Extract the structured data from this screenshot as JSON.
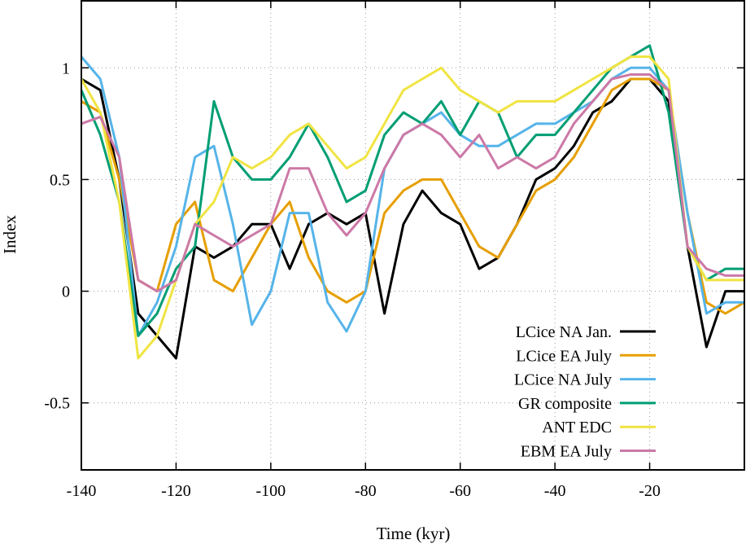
{
  "chart_data": {
    "type": "line",
    "title": "",
    "xlabel": "Time (kyr)",
    "ylabel": "Index",
    "xlim": [
      -140,
      0
    ],
    "ylim": [
      -0.8,
      1.3
    ],
    "xticks": [
      -140,
      -120,
      -100,
      -80,
      -60,
      -40,
      -20
    ],
    "xtick_labels": [
      "-140",
      "-120",
      "-100",
      "-80",
      "-60",
      "-40",
      "-20"
    ],
    "yticks": [
      -0.5,
      0,
      0.5,
      1
    ],
    "ytick_labels": [
      "-0.5",
      "0",
      "0.5",
      "1"
    ],
    "grid": true,
    "legend_position": "bottom-right",
    "x": [
      -140,
      -136,
      -132,
      -128,
      -124,
      -120,
      -116,
      -112,
      -108,
      -104,
      -100,
      -96,
      -92,
      -88,
      -84,
      -80,
      -76,
      -72,
      -68,
      -64,
      -60,
      -56,
      -52,
      -48,
      -44,
      -40,
      -36,
      -32,
      -28,
      -24,
      -20,
      -16,
      -12,
      -8,
      -4,
      0
    ],
    "series": [
      {
        "name": "LCice NA Jan.",
        "color": "#000000",
        "values": [
          0.95,
          0.9,
          0.5,
          -0.1,
          -0.2,
          -0.3,
          0.2,
          0.15,
          0.2,
          0.3,
          0.3,
          0.1,
          0.3,
          0.35,
          0.3,
          0.35,
          -0.1,
          0.3,
          0.45,
          0.35,
          0.3,
          0.1,
          0.15,
          0.3,
          0.5,
          0.55,
          0.65,
          0.8,
          0.85,
          0.95,
          0.95,
          0.85,
          0.2,
          -0.25,
          0.0,
          0.0
        ]
      },
      {
        "name": "LCice EA July",
        "color": "#e69f00",
        "values": [
          0.85,
          0.8,
          0.5,
          0.05,
          0.0,
          0.3,
          0.4,
          0.05,
          0.0,
          0.15,
          0.3,
          0.4,
          0.15,
          0.0,
          -0.05,
          0.0,
          0.35,
          0.45,
          0.5,
          0.5,
          0.35,
          0.2,
          0.15,
          0.3,
          0.45,
          0.5,
          0.6,
          0.75,
          0.9,
          0.95,
          0.95,
          0.9,
          0.35,
          -0.05,
          -0.1,
          -0.05
        ]
      },
      {
        "name": "LCice NA July",
        "color": "#56b4e9",
        "values": [
          1.05,
          0.95,
          0.6,
          -0.2,
          -0.05,
          0.2,
          0.6,
          0.65,
          0.3,
          -0.15,
          0.0,
          0.35,
          0.35,
          -0.05,
          -0.18,
          0.0,
          0.55,
          0.7,
          0.75,
          0.8,
          0.7,
          0.65,
          0.65,
          0.7,
          0.75,
          0.75,
          0.8,
          0.85,
          0.95,
          1.0,
          1.0,
          0.9,
          0.35,
          -0.1,
          -0.05,
          -0.05
        ]
      },
      {
        "name": "GR composite",
        "color": "#009e73",
        "values": [
          0.9,
          0.7,
          0.4,
          -0.2,
          -0.1,
          0.1,
          0.2,
          0.85,
          0.6,
          0.5,
          0.5,
          0.6,
          0.75,
          0.6,
          0.4,
          0.45,
          0.7,
          0.8,
          0.75,
          0.85,
          0.7,
          0.85,
          0.8,
          0.6,
          0.7,
          0.7,
          0.8,
          0.9,
          1.0,
          1.05,
          1.1,
          0.8,
          0.2,
          0.05,
          0.1,
          0.1
        ]
      },
      {
        "name": "ANT EDC",
        "color": "#f0e442",
        "values": [
          0.95,
          0.8,
          0.4,
          -0.3,
          -0.2,
          0.05,
          0.3,
          0.4,
          0.6,
          0.55,
          0.6,
          0.7,
          0.75,
          0.65,
          0.55,
          0.6,
          0.75,
          0.9,
          0.95,
          1.0,
          0.9,
          0.85,
          0.8,
          0.85,
          0.85,
          0.85,
          0.9,
          0.95,
          1.0,
          1.05,
          1.05,
          0.95,
          0.2,
          0.05,
          0.05,
          0.05
        ]
      },
      {
        "name": "EBM EA July",
        "color": "#cc79a7",
        "values": [
          0.75,
          0.78,
          0.6,
          0.05,
          0.0,
          0.05,
          0.3,
          0.25,
          0.2,
          0.25,
          0.3,
          0.55,
          0.55,
          0.35,
          0.25,
          0.35,
          0.55,
          0.7,
          0.75,
          0.7,
          0.6,
          0.7,
          0.55,
          0.6,
          0.55,
          0.6,
          0.75,
          0.85,
          0.95,
          0.97,
          0.97,
          0.9,
          0.2,
          0.1,
          0.07,
          0.07
        ]
      }
    ]
  }
}
